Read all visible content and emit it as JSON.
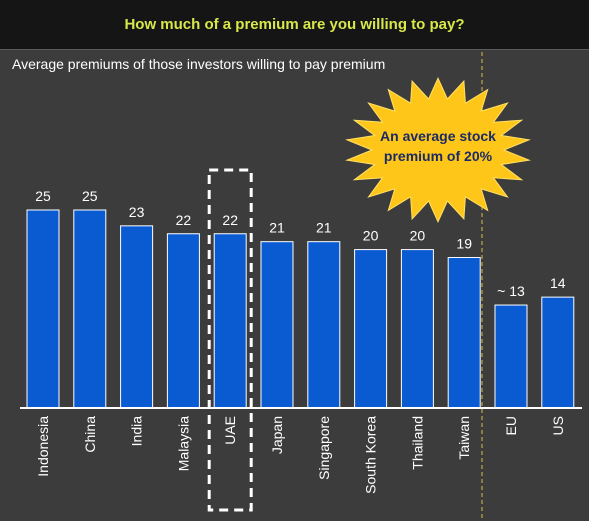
{
  "header": {
    "title": "How much of a premium are you willing to pay?"
  },
  "chart_data": {
    "type": "bar",
    "subtitle": "Average premiums of those investors willing to pay premium",
    "categories": [
      "Indonesia",
      "China",
      "India",
      "Malaysia",
      "UAE",
      "Japan",
      "Singapore",
      "South Korea",
      "Thailand",
      "Taiwan",
      "EU",
      "US"
    ],
    "values": [
      25,
      25,
      23,
      22,
      22,
      21,
      21,
      20,
      20,
      19,
      13,
      14
    ],
    "value_labels": [
      "25",
      "25",
      "23",
      "22",
      "22",
      "21",
      "21",
      "20",
      "20",
      "19",
      "~ 13",
      "14"
    ],
    "highlighted_category": "UAE",
    "annotation": {
      "line1": "An average stock",
      "line2": "premium of 20%"
    },
    "ylim": [
      0,
      25
    ],
    "grid": false,
    "bar_color": "#0a5ad2",
    "separator_color": "#d8c24a"
  }
}
